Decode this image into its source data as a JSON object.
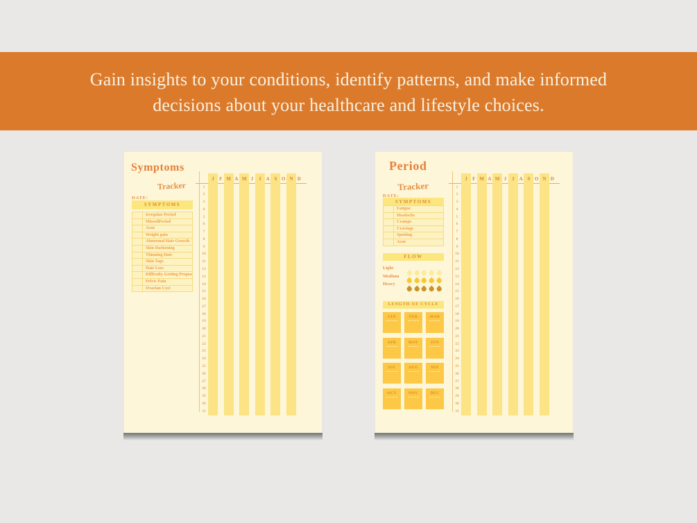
{
  "banner": {
    "line1": "Gain insights to your conditions, identify patterns, and make informed",
    "line2": "decisions about your healthcare and lifestyle choices."
  },
  "months_letters": [
    "J",
    "F",
    "M",
    "A",
    "M",
    "J",
    "J",
    "A",
    "S",
    "O",
    "N",
    "D"
  ],
  "days": [
    1,
    2,
    3,
    4,
    5,
    6,
    7,
    8,
    9,
    10,
    11,
    12,
    13,
    14,
    15,
    16,
    17,
    18,
    19,
    20,
    21,
    22,
    23,
    24,
    25,
    26,
    27,
    28,
    29,
    30,
    31
  ],
  "pages": {
    "symptoms": {
      "title": "Symptoms",
      "subtitle": "Tracker",
      "date_label": "DATE:",
      "symptoms_header": "SYMPTOMS",
      "symptoms": [
        "Irregular Period",
        "MissedPeriod",
        "Acne",
        "Weight gain",
        "Abnormal Hair Growth",
        "Skin Darkening",
        "Thinning Hair",
        "Skin Tags",
        "Hair Loss",
        "Difficulty Getting Pregnant",
        "Pelvic Pain",
        "Ovarian Cyst"
      ]
    },
    "period": {
      "title": "Period",
      "subtitle": "Tracker",
      "date_label": "DATE:",
      "symptoms_header": "SYMPTOMS",
      "symptoms": [
        "Fatigue",
        "Headache",
        "Cramps",
        "Cravings",
        "Spotting",
        "Acne"
      ],
      "flow_header": "FLOW",
      "drops_per_row": 5,
      "flow_levels": [
        {
          "label": "Light",
          "color": "#FBEC9C"
        },
        {
          "label": "Medium",
          "color": "#FBC72F"
        },
        {
          "label": "Heavy",
          "color": "#C9932B"
        }
      ],
      "cycle_header": "LENGTH OF CYCLE",
      "cycle_months": [
        "JAN",
        "FEB",
        "MAR",
        "APR",
        "MAY",
        "JUN",
        "JUL",
        "AUG",
        "SEP",
        "OCT",
        "NOV",
        "DEC"
      ]
    }
  },
  "colors": {
    "background_gray": "#E9E8E6",
    "banner_bg": "#DC7A2B",
    "banner_text": "#F9F2E3",
    "page_bg": "#FDF6D9",
    "bar_yellow": "#FBE386",
    "header_box_yellow": "#FBE77E",
    "cycle_box_yellow": "#FCC845",
    "title_orange": "#E5813B",
    "text_orange": "#EF9D49"
  }
}
